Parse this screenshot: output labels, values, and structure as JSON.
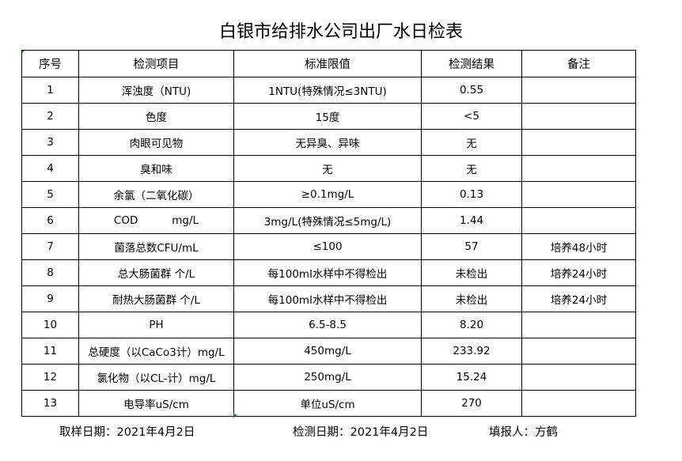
{
  "title": "白银市给排水公司出厂水日检表",
  "headers": [
    "序号",
    "检测项目",
    "标准限值",
    "检测结果",
    "备注"
  ],
  "rows": [
    [
      "1",
      "浑浊度（NTU)",
      "1NTU(特殊情况≤3NTU)",
      "0.55",
      ""
    ],
    [
      "2",
      "色度",
      "15度",
      "<5",
      ""
    ],
    [
      "3",
      "肉眼可见物",
      "无异臭、异味",
      "无",
      ""
    ],
    [
      "4",
      "臭和味",
      "无",
      "无",
      ""
    ],
    [
      "5",
      "余氯（二氧化碳）",
      "≥0.1mg/L",
      "0.13",
      ""
    ],
    [
      "6",
      "COD          mg/L",
      "3mg/L(特殊情况≤5mg/L)",
      "1.44",
      ""
    ],
    [
      "7",
      "菌落总数CFU/mL",
      "≤100",
      "57",
      "培养48小时"
    ],
    [
      "8",
      "总大肠菌群 个/L",
      "每100ml水样中不得检出",
      "未检出",
      "培养24小时"
    ],
    [
      "9",
      "耐热大肠菌群 个/L",
      "每100ml水样中不得检出",
      "未检出",
      "培养24小时"
    ],
    [
      "10",
      "PH",
      "6.5-8.5",
      "8.20",
      ""
    ],
    [
      "11",
      "总硬度（以CaCo3计）mg/L",
      "450mg/L",
      "233.92",
      ""
    ],
    [
      "12",
      "氯化物（以CL-计）mg/L",
      "250mg/L",
      "15.24",
      ""
    ],
    [
      "13",
      "电导率uS/cm",
      "单位uS/cm",
      "270",
      ""
    ]
  ],
  "footer": {
    "sample_date": "取样日期：2021年4月2日",
    "test_date": "检测日期：2021年4月2日",
    "reporter": "填报人：方鹤"
  }
}
